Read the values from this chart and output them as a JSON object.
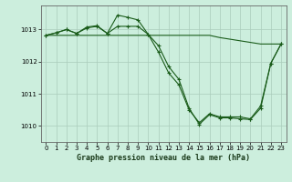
{
  "background_color": "#cceedd",
  "grid_color": "#aaccbb",
  "line_color": "#1a5c1a",
  "title": "Graphe pression niveau de la mer (hPa)",
  "ylim": [
    1009.5,
    1013.75
  ],
  "xlim": [
    -0.5,
    23.5
  ],
  "yticks": [
    1010,
    1011,
    1012,
    1013
  ],
  "xticks": [
    0,
    1,
    2,
    3,
    4,
    5,
    6,
    7,
    8,
    9,
    10,
    11,
    12,
    13,
    14,
    15,
    16,
    17,
    18,
    19,
    20,
    21,
    22,
    23
  ],
  "series1_x": [
    0,
    1,
    2,
    3,
    4,
    5,
    6,
    7,
    8,
    9,
    10,
    11,
    12,
    13,
    14,
    15,
    16,
    17,
    18,
    19,
    20,
    21,
    22,
    23
  ],
  "series1_y": [
    1012.82,
    1012.9,
    1013.0,
    1012.88,
    1013.08,
    1013.12,
    1012.88,
    1013.45,
    1013.38,
    1013.3,
    1012.85,
    1012.5,
    1011.85,
    1011.45,
    1010.55,
    1010.05,
    1010.35,
    1010.25,
    1010.25,
    1010.22,
    1010.2,
    1010.55,
    1011.95,
    1012.55
  ],
  "series2_x": [
    0,
    1,
    2,
    3,
    4,
    5,
    6,
    7,
    8,
    9,
    10,
    11,
    12,
    13,
    14,
    15,
    16,
    17,
    18,
    19,
    20,
    21,
    22,
    23
  ],
  "series2_y": [
    1012.82,
    1012.82,
    1012.82,
    1012.82,
    1012.82,
    1012.82,
    1012.82,
    1012.82,
    1012.82,
    1012.82,
    1012.82,
    1012.82,
    1012.82,
    1012.82,
    1012.82,
    1012.82,
    1012.82,
    1012.75,
    1012.7,
    1012.65,
    1012.6,
    1012.55,
    1012.55,
    1012.55
  ],
  "series3_x": [
    0,
    1,
    2,
    3,
    4,
    5,
    6,
    7,
    8,
    9,
    10,
    11,
    12,
    13,
    14,
    15,
    16,
    17,
    18,
    19,
    20,
    21,
    22,
    23
  ],
  "series3_y": [
    1012.82,
    1012.9,
    1013.0,
    1012.88,
    1013.05,
    1013.1,
    1012.88,
    1013.1,
    1013.1,
    1013.1,
    1012.85,
    1012.3,
    1011.65,
    1011.28,
    1010.5,
    1010.1,
    1010.38,
    1010.28,
    1010.28,
    1010.28,
    1010.22,
    1010.62,
    1011.95,
    1012.55
  ],
  "marker": "+",
  "markersize": 3,
  "linewidth": 0.8,
  "tick_fontsize": 5,
  "title_fontsize": 6
}
